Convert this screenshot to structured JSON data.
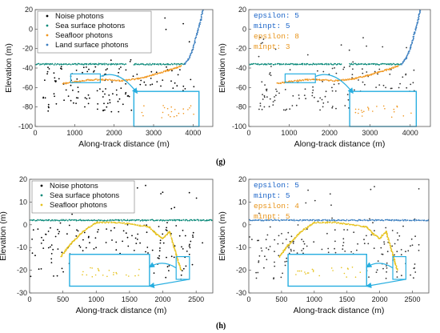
{
  "captions": {
    "g": "(g)",
    "h": "(h)"
  },
  "colors": {
    "noise": "#000000",
    "sea_surface": "#0b8a7a",
    "seafloor": "#f0961e",
    "land": "#3c7fc0",
    "zoom_box": "#27aee0",
    "param_blue": "#1a64c8",
    "param_orange": "#e8941a",
    "seafloor_h": "#e6c21e"
  },
  "chart_data": [
    {
      "panel": "g-left",
      "type": "scatter",
      "xlabel": "Along-track distance (m)",
      "ylabel": "Elevation (m)",
      "xlim": [
        0,
        4500
      ],
      "ylim": [
        -100,
        20
      ],
      "xticks": [
        0,
        1000,
        2000,
        3000,
        4000
      ],
      "yticks": [
        -100,
        -80,
        -60,
        -40,
        -20,
        0,
        20
      ],
      "xtick_labels": [
        "0",
        "1000",
        "2000",
        "3000",
        "4000"
      ],
      "ytick_labels": [
        "-100",
        "-80",
        "-60",
        "-40",
        "-20",
        "0",
        "20"
      ],
      "legend_position": "top-left",
      "legend": [
        "Noise photons",
        "Sea surface photons",
        "Seafloor photons",
        "Land surface photons"
      ],
      "params": [],
      "series": [
        {
          "name": "Noise photons",
          "kind": "noise",
          "x_range": [
            200,
            4100
          ],
          "y_range": [
            -85,
            -38
          ],
          "count": 150,
          "sparse_above": true
        },
        {
          "name": "Sea surface photons",
          "kind": "line",
          "x": [
            0,
            2300,
            2500,
            3780
          ],
          "y": [
            -36,
            -36,
            -36,
            -36
          ],
          "gaps": [
            [
              2300,
              2500
            ]
          ]
        },
        {
          "name": "Seafloor photons",
          "kind": "line",
          "x": [
            700,
            1000,
            1400,
            1800,
            2200,
            2600,
            3000,
            3400,
            3700
          ],
          "y": [
            -56,
            -54,
            -52,
            -52,
            -53,
            -51,
            -47,
            -42,
            -38
          ]
        },
        {
          "name": "Land surface photons",
          "kind": "line",
          "x": [
            3780,
            3900,
            4000,
            4100,
            4200,
            4250
          ],
          "y": [
            -36,
            -30,
            -20,
            -5,
            10,
            20
          ]
        }
      ],
      "zoom": {
        "src": [
          [
            900,
            -55
          ],
          [
            1650,
            -46
          ]
        ],
        "dst": [
          [
            2500,
            -100
          ],
          [
            4150,
            -64
          ]
        ]
      }
    },
    {
      "panel": "g-right",
      "type": "scatter",
      "xlabel": "Along-track distance (m)",
      "ylabel": "Elevation (m)",
      "xlim": [
        0,
        4500
      ],
      "ylim": [
        -100,
        20
      ],
      "xticks": [
        0,
        1000,
        2000,
        3000,
        4000
      ],
      "yticks": [
        -100,
        -80,
        -60,
        -40,
        -20,
        0,
        20
      ],
      "xtick_labels": [
        "0",
        "1000",
        "2000",
        "3000",
        "4000"
      ],
      "ytick_labels": [
        "-100",
        "-80",
        "-60",
        "-40",
        "-20",
        "0",
        "20"
      ],
      "legend": [],
      "params": [
        {
          "text": "epsilon: 5",
          "color": "param_blue"
        },
        {
          "text": "minpt: 5",
          "color": "param_blue"
        },
        {
          "text": "epsilon: 8",
          "color": "param_orange"
        },
        {
          "text": "minpt: 3",
          "color": "param_orange"
        }
      ],
      "series": [
        {
          "kind": "noise",
          "x_range": [
            200,
            4100
          ],
          "y_range": [
            -85,
            -38
          ],
          "count": 150,
          "sparse_above": true
        },
        {
          "kind": "line",
          "color": "sea_surface",
          "x": [
            0,
            2300,
            2500,
            3780
          ],
          "y": [
            -36,
            -36,
            -36,
            -36
          ],
          "gaps": [
            [
              2300,
              2500
            ]
          ]
        },
        {
          "kind": "line",
          "color": "seafloor",
          "x": [
            700,
            1000,
            1400,
            1800,
            2200,
            2600,
            3000,
            3400,
            3700
          ],
          "y": [
            -56,
            -54,
            -52,
            -52,
            -53,
            -51,
            -47,
            -42,
            -38
          ]
        },
        {
          "kind": "line",
          "color": "land",
          "x": [
            3780,
            3900,
            4000,
            4100,
            4200,
            4250
          ],
          "y": [
            -36,
            -30,
            -20,
            -5,
            10,
            20
          ]
        }
      ],
      "zoom": {
        "src": [
          [
            900,
            -55
          ],
          [
            1650,
            -46
          ]
        ],
        "dst": [
          [
            2500,
            -100
          ],
          [
            4150,
            -64
          ]
        ]
      }
    },
    {
      "panel": "h-left",
      "type": "scatter",
      "xlabel": "Along-track distance (m)",
      "ylabel": "Elevation (m)",
      "xlim": [
        0,
        2750
      ],
      "ylim": [
        -30,
        20
      ],
      "xticks": [
        0,
        500,
        1000,
        1500,
        2000,
        2500
      ],
      "yticks": [
        -30,
        -20,
        -10,
        0,
        10,
        20
      ],
      "xtick_labels": [
        "0",
        "500",
        "1000",
        "1500",
        "2000",
        "2500"
      ],
      "ytick_labels": [
        "-30",
        "-20",
        "-10",
        "0",
        "10",
        "20"
      ],
      "legend_position": "top-left",
      "legend": [
        "Noise photons",
        "Sea surface photons",
        "Seafloor photons"
      ],
      "params": [],
      "series": [
        {
          "name": "Noise photons",
          "kind": "noise",
          "x_range": [
            0,
            2600
          ],
          "y_range": [
            -24,
            0
          ],
          "count": 170,
          "sparse_above": true
        },
        {
          "name": "Sea surface photons",
          "kind": "line",
          "x": [
            0,
            2750
          ],
          "y": [
            2,
            2
          ]
        },
        {
          "name": "Seafloor photons",
          "kind": "line",
          "x": [
            470,
            600,
            800,
            1000,
            1300,
            1600,
            1800,
            1900,
            2000,
            2100,
            2200,
            2270
          ],
          "y": [
            -14,
            -9,
            -3,
            1,
            1,
            0,
            -1,
            -4,
            -6,
            -3,
            -13,
            -20
          ]
        }
      ],
      "zoom": {
        "src": [
          [
            2200,
            -24
          ],
          [
            2400,
            -14
          ]
        ],
        "dst": [
          [
            600,
            -27
          ],
          [
            1800,
            -13
          ]
        ]
      }
    },
    {
      "panel": "h-right",
      "type": "scatter",
      "xlabel": "Along-track distance (m)",
      "ylabel": "Elevation (m)",
      "xlim": [
        0,
        2750
      ],
      "ylim": [
        -30,
        20
      ],
      "xticks": [
        0,
        500,
        1000,
        1500,
        2000,
        2500
      ],
      "yticks": [
        -30,
        -20,
        -10,
        0,
        10,
        20
      ],
      "xtick_labels": [
        "0",
        "500",
        "1000",
        "1500",
        "2000",
        "2500"
      ],
      "ytick_labels": [
        "-30",
        "-20",
        "-10",
        "0",
        "10",
        "20"
      ],
      "legend": [],
      "params": [
        {
          "text": "epsilon: 5",
          "color": "param_blue"
        },
        {
          "text": "minpt: 5",
          "color": "param_blue"
        },
        {
          "text": "epsilon: 4",
          "color": "param_orange"
        },
        {
          "text": "minpt: 5",
          "color": "param_orange"
        }
      ],
      "series": [
        {
          "kind": "noise",
          "x_range": [
            0,
            2600
          ],
          "y_range": [
            -24,
            0
          ],
          "count": 170,
          "sparse_above": true
        },
        {
          "kind": "line",
          "color": "land",
          "x": [
            0,
            2750
          ],
          "y": [
            2,
            2
          ]
        },
        {
          "kind": "line",
          "color": "seafloor_h",
          "x": [
            470,
            600,
            800,
            1000,
            1300,
            1600,
            1800,
            1900,
            2000,
            2100,
            2200,
            2270
          ],
          "y": [
            -14,
            -9,
            -3,
            1,
            1,
            0,
            -1,
            -4,
            -6,
            -3,
            -13,
            -20
          ]
        }
      ],
      "zoom": {
        "src": [
          [
            2200,
            -24
          ],
          [
            2400,
            -14
          ]
        ],
        "dst": [
          [
            600,
            -27
          ],
          [
            1800,
            -13
          ]
        ]
      }
    }
  ]
}
